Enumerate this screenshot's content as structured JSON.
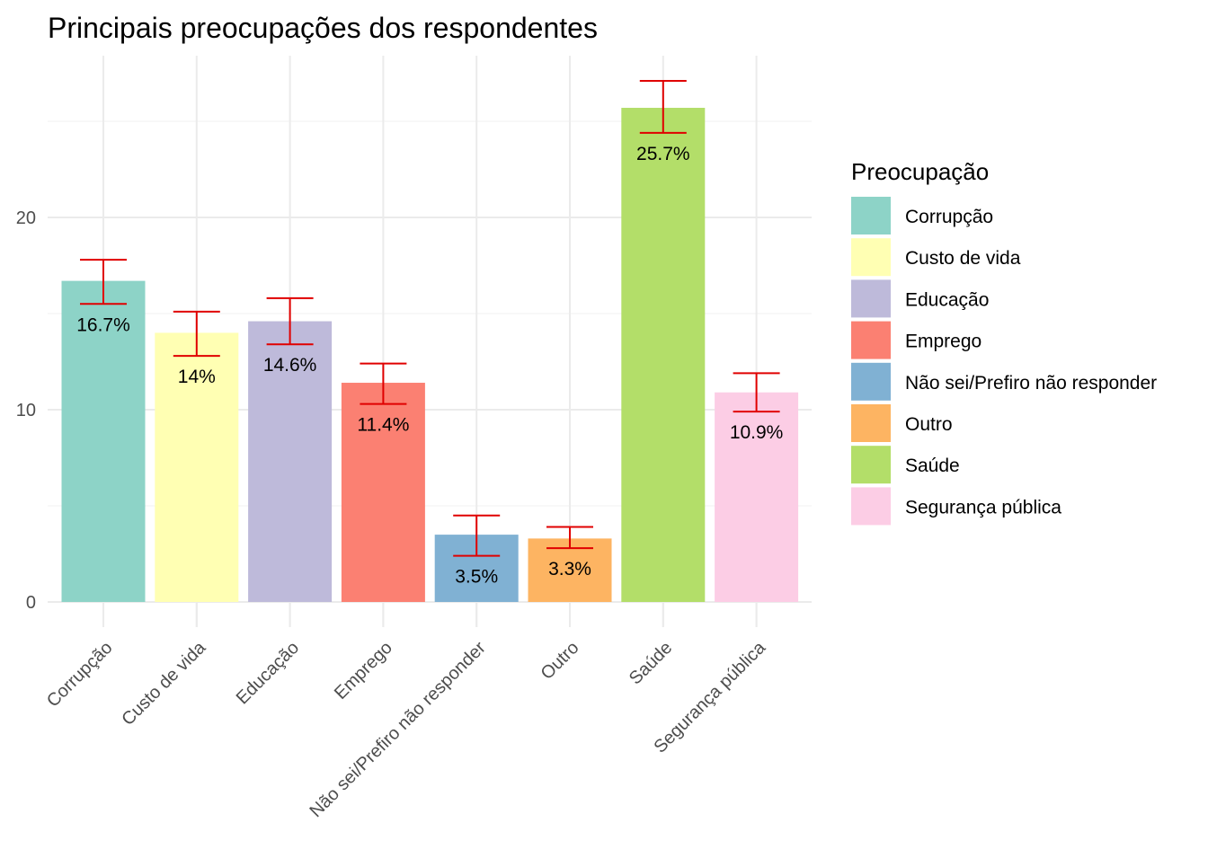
{
  "chart_data": {
    "type": "bar",
    "title": "Principais preocupações dos respondentes",
    "xlabel": "",
    "ylabel": "",
    "ylim": [
      0,
      28.3
    ],
    "y_ticks": [
      0,
      10,
      20
    ],
    "grid": true,
    "legend": {
      "title": "Preocupação",
      "position": "right"
    },
    "categories": [
      "Corrupção",
      "Custo de vida",
      "Educação",
      "Emprego",
      "Não sei/Prefiro não responder",
      "Outro",
      "Saúde",
      "Segurança pública"
    ],
    "values": [
      16.7,
      14.0,
      14.6,
      11.4,
      3.5,
      3.3,
      25.7,
      10.9
    ],
    "error_low": [
      15.5,
      12.8,
      13.4,
      10.3,
      2.4,
      2.8,
      24.4,
      9.9
    ],
    "error_high": [
      17.8,
      15.1,
      15.8,
      12.4,
      4.5,
      3.9,
      27.1,
      11.9
    ],
    "data_labels": [
      "16.7%",
      "14%",
      "14.6%",
      "11.4%",
      "3.5%",
      "3.3%",
      "25.7%",
      "10.9%"
    ],
    "colors": [
      "#8DD3C7",
      "#FFFFB3",
      "#BEBADA",
      "#FB8072",
      "#80B1D3",
      "#FDB462",
      "#B3DE69",
      "#FCCDE5"
    ],
    "error_color": "#E00000"
  }
}
